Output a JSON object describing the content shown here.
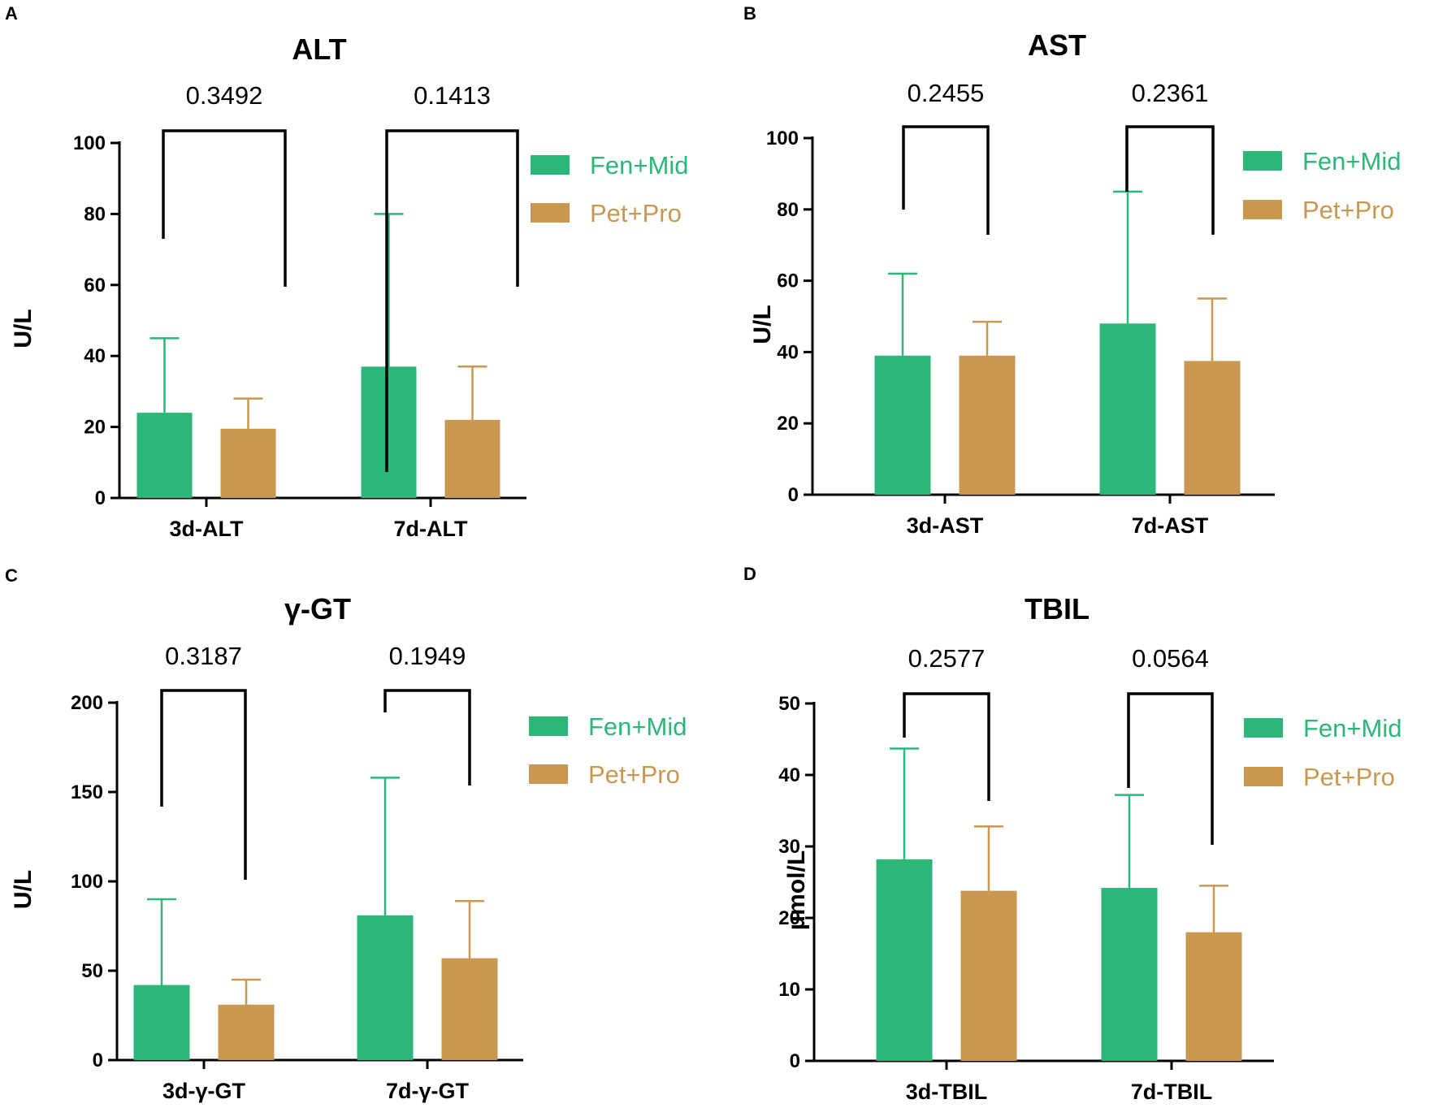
{
  "colors": {
    "fen_mid": "#2ab778",
    "pet_pro": "#c99750",
    "axis": "#000000"
  },
  "legend": [
    "Fen+Mid",
    "Pet+Pro"
  ],
  "chart_data": [
    {
      "letter": "A",
      "type": "bar",
      "title": "ALT",
      "ylabel": "U/L",
      "ylim": [
        0,
        100
      ],
      "yticks": [
        0,
        20,
        40,
        60,
        80,
        100
      ],
      "categories": [
        "3d-ALT",
        "7d-ALT"
      ],
      "series": [
        {
          "name": "Fen+Mid",
          "values": [
            24,
            37
          ],
          "errors": [
            21,
            43
          ]
        },
        {
          "name": "Pet+Pro",
          "values": [
            19.5,
            22
          ],
          "errors": [
            8.5,
            15
          ]
        }
      ],
      "pvalues": [
        "0.3492",
        "0.1413"
      ]
    },
    {
      "letter": "B",
      "type": "bar",
      "title": "AST",
      "ylabel": "U/L",
      "ylim": [
        0,
        100
      ],
      "yticks": [
        0,
        20,
        40,
        60,
        80,
        100
      ],
      "categories": [
        "3d-AST",
        "7d-AST"
      ],
      "series": [
        {
          "name": "Fen+Mid",
          "values": [
            39,
            48
          ],
          "errors": [
            23,
            37
          ]
        },
        {
          "name": "Pet+Pro",
          "values": [
            39,
            37.5
          ],
          "errors": [
            9.5,
            17.5
          ]
        }
      ],
      "pvalues": [
        "0.2455",
        "0.2361"
      ]
    },
    {
      "letter": "C",
      "type": "bar",
      "title": "γ-GT",
      "ylabel": "U/L",
      "ylim": [
        0,
        200
      ],
      "yticks": [
        0,
        50,
        100,
        150,
        200
      ],
      "categories": [
        "3d-γ-GT",
        "7d-γ-GT"
      ],
      "series": [
        {
          "name": "Fen+Mid",
          "values": [
            42,
            81
          ],
          "errors": [
            48,
            77
          ]
        },
        {
          "name": "Pet+Pro",
          "values": [
            31,
            57
          ],
          "errors": [
            14,
            32
          ]
        }
      ],
      "pvalues": [
        "0.3187",
        "0.1949"
      ]
    },
    {
      "letter": "D",
      "type": "bar",
      "title": "TBIL",
      "ylabel": "μmol/L",
      "ylim": [
        0,
        50
      ],
      "yticks": [
        0,
        10,
        20,
        30,
        40,
        50
      ],
      "categories": [
        "3d-TBIL",
        "7d-TBIL"
      ],
      "series": [
        {
          "name": "Fen+Mid",
          "values": [
            28.2,
            24.2
          ],
          "errors": [
            15.5,
            13
          ]
        },
        {
          "name": "Pet+Pro",
          "values": [
            23.8,
            18
          ],
          "errors": [
            9,
            6.5
          ]
        }
      ],
      "pvalues": [
        "0.2577",
        "0.0564"
      ]
    }
  ]
}
